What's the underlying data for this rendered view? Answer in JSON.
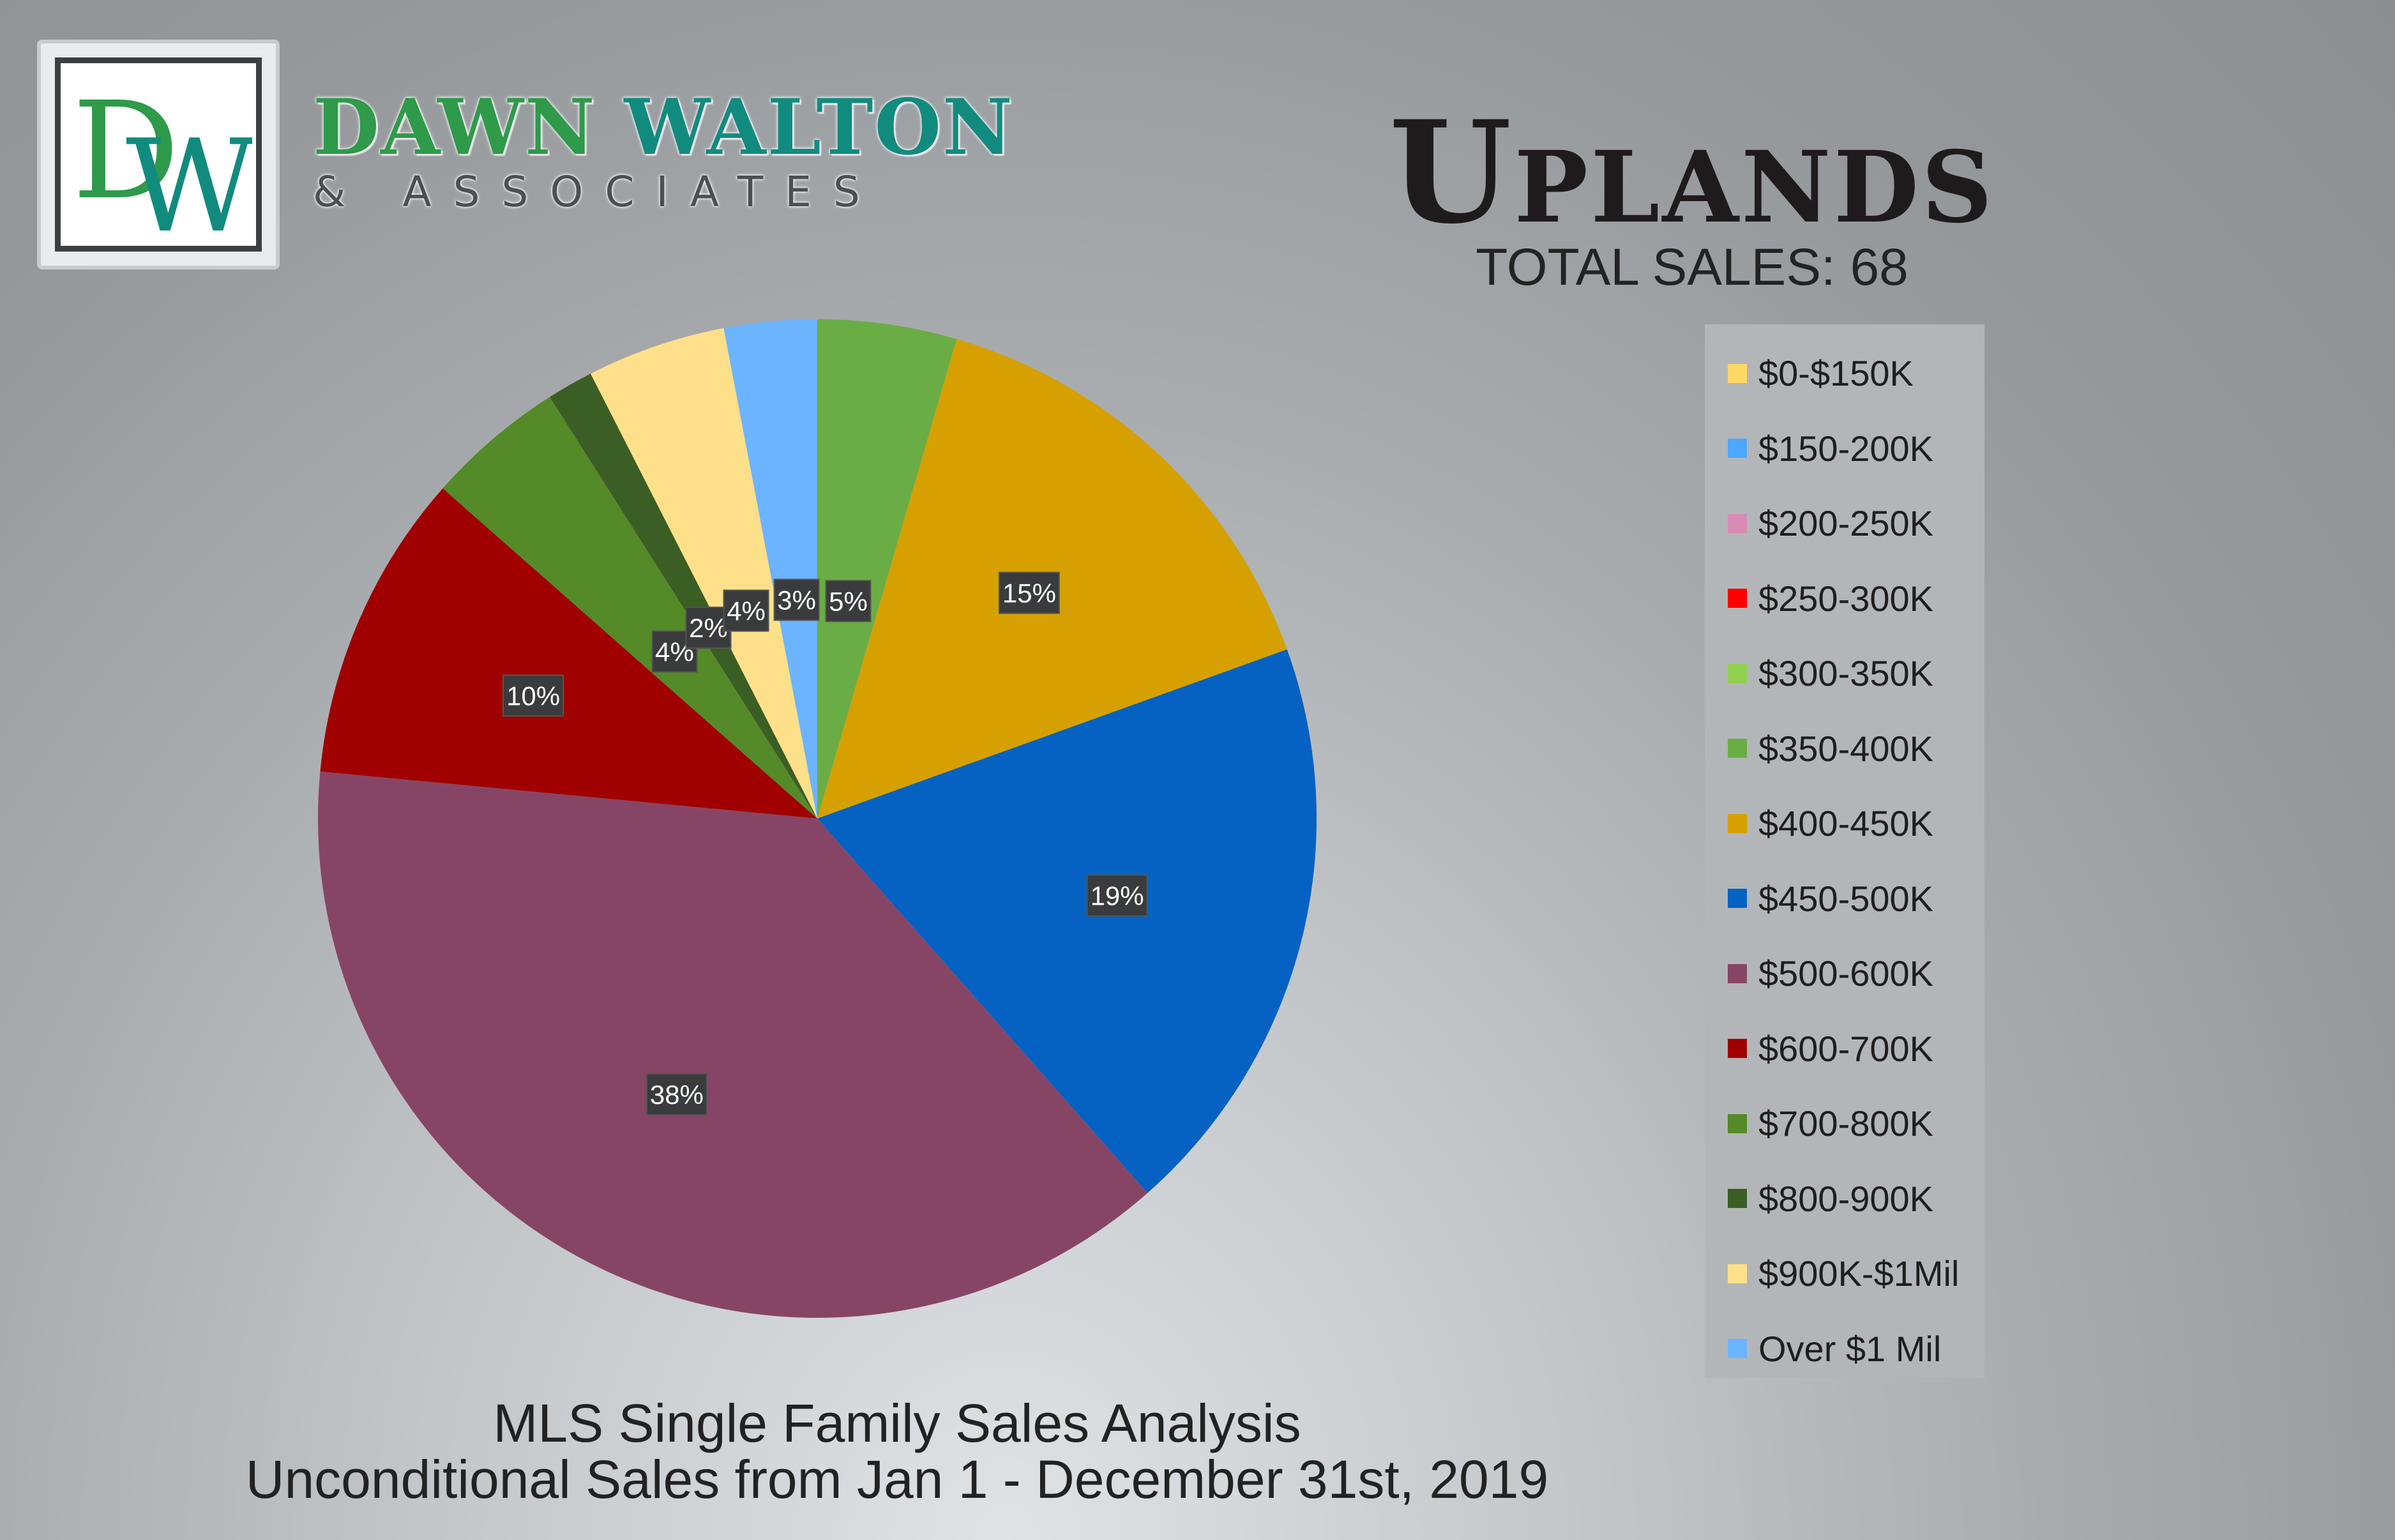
{
  "brand": {
    "monogram_left": "D",
    "monogram_right": "W",
    "name_part1": "DAWN",
    "name_part2": "WALTON",
    "subtitle": "& ASSOCIATES",
    "colors": {
      "green": "#2e9a4a",
      "teal": "#128b7f"
    }
  },
  "header": {
    "title": "Uplands",
    "total_sales": "TOTAL SALES: 68"
  },
  "footer": {
    "line1": "MLS Single Family Sales Analysis",
    "line2": "Unconditional Sales from Jan 1 - December 31st, 2019"
  },
  "chart_data": {
    "type": "pie",
    "title": "Uplands",
    "legend_position": "right",
    "slices": [
      {
        "label": "$0-$150K",
        "value": 0,
        "color": "#ffd966",
        "display": ""
      },
      {
        "label": "$150-200K",
        "value": 0,
        "color": "#4da6ff",
        "display": ""
      },
      {
        "label": "$200-250K",
        "value": 0,
        "color": "#d98cb3",
        "display": ""
      },
      {
        "label": "$250-300K",
        "value": 0,
        "color": "#ff0000",
        "display": ""
      },
      {
        "label": "$300-350K",
        "value": 0,
        "color": "#92d050",
        "display": ""
      },
      {
        "label": "$350-400K",
        "value": 4.5,
        "color": "#6aad45",
        "display": "5%"
      },
      {
        "label": "$400-450K",
        "value": 15,
        "color": "#d6a000",
        "display": "15%"
      },
      {
        "label": "$450-500K",
        "value": 19,
        "color": "#0562c2",
        "display": "19%"
      },
      {
        "label": "$500-600K",
        "value": 38,
        "color": "#874566",
        "display": "38%"
      },
      {
        "label": "$600-700K",
        "value": 10,
        "color": "#a10000",
        "display": "10%"
      },
      {
        "label": "$700-800K",
        "value": 4.5,
        "color": "#558a28",
        "display": "4%"
      },
      {
        "label": "$800-900K",
        "value": 1.5,
        "color": "#3b5e25",
        "display": "2%"
      },
      {
        "label": "$900K-$1Mil",
        "value": 4.5,
        "color": "#ffe08a",
        "display": "4%"
      },
      {
        "label": "Over $1 Mil",
        "value": 3,
        "color": "#6cb4ff",
        "display": "3%"
      }
    ]
  }
}
